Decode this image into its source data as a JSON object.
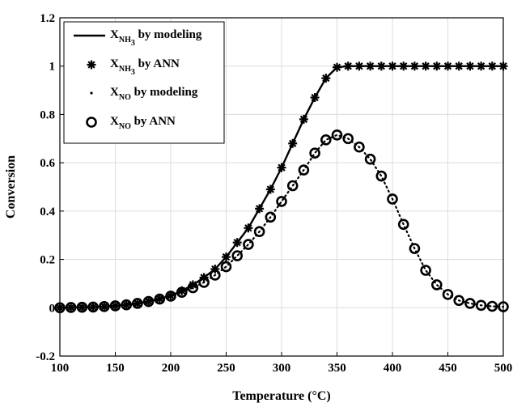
{
  "chart_data": {
    "type": "line",
    "xlabel": "Temperature (°C)",
    "ylabel": "Conversion",
    "xlim": [
      100,
      500
    ],
    "ylim": [
      -0.2,
      1.2
    ],
    "xticks": [
      100,
      150,
      200,
      250,
      300,
      350,
      400,
      450,
      500
    ],
    "yticks": [
      -0.2,
      0,
      0.2,
      0.4,
      0.6,
      0.8,
      1,
      1.2
    ],
    "ytick_labels": [
      "-0.2",
      "0",
      "0.2",
      "0.4",
      "0.6",
      "0.8",
      "1",
      "1.2"
    ],
    "grid": true,
    "legend_position": "top-left",
    "x": [
      100,
      110,
      120,
      130,
      140,
      150,
      160,
      170,
      180,
      190,
      200,
      210,
      220,
      230,
      240,
      250,
      260,
      270,
      280,
      290,
      300,
      310,
      320,
      330,
      340,
      350,
      360,
      370,
      380,
      390,
      400,
      410,
      420,
      430,
      440,
      450,
      460,
      470,
      480,
      490,
      500
    ],
    "series": [
      {
        "name": "by modeling",
        "legend_base": "X",
        "legend_sub": "NH",
        "legend_sub2": "3",
        "style": "solid-line",
        "values": [
          0.0,
          0.001,
          0.002,
          0.003,
          0.005,
          0.008,
          0.012,
          0.018,
          0.026,
          0.037,
          0.05,
          0.07,
          0.095,
          0.125,
          0.16,
          0.21,
          0.27,
          0.33,
          0.41,
          0.49,
          0.58,
          0.68,
          0.78,
          0.87,
          0.95,
          0.995,
          1.0,
          1.0,
          1.0,
          1.0,
          1.0,
          1.0,
          1.0,
          1.0,
          1.0,
          1.0,
          1.0,
          1.0,
          1.0,
          1.0,
          1.0
        ]
      },
      {
        "name": "by ANN",
        "legend_base": "X",
        "legend_sub": "NH",
        "legend_sub2": "3",
        "style": "asterisk-marker",
        "values": [
          0.0,
          0.001,
          0.002,
          0.003,
          0.005,
          0.008,
          0.012,
          0.018,
          0.026,
          0.037,
          0.05,
          0.07,
          0.095,
          0.125,
          0.16,
          0.21,
          0.27,
          0.33,
          0.41,
          0.49,
          0.58,
          0.68,
          0.78,
          0.87,
          0.95,
          0.995,
          1.0,
          1.0,
          1.0,
          1.0,
          1.0,
          1.0,
          1.0,
          1.0,
          1.0,
          1.0,
          1.0,
          1.0,
          1.0,
          1.0,
          1.0
        ]
      },
      {
        "name": "by modeling",
        "legend_base": "X",
        "legend_sub": "NO",
        "legend_sub2": "",
        "style": "dotted-line",
        "values": [
          0.0,
          0.001,
          0.002,
          0.003,
          0.005,
          0.008,
          0.012,
          0.018,
          0.026,
          0.036,
          0.048,
          0.064,
          0.083,
          0.105,
          0.135,
          0.17,
          0.215,
          0.262,
          0.315,
          0.375,
          0.44,
          0.505,
          0.57,
          0.64,
          0.695,
          0.715,
          0.7,
          0.665,
          0.615,
          0.545,
          0.45,
          0.345,
          0.245,
          0.155,
          0.095,
          0.055,
          0.03,
          0.018,
          0.01,
          0.006,
          0.004
        ]
      },
      {
        "name": "by ANN",
        "legend_base": "X",
        "legend_sub": "NO",
        "legend_sub2": "",
        "style": "circle-marker",
        "values": [
          0.0,
          0.001,
          0.002,
          0.003,
          0.005,
          0.008,
          0.012,
          0.018,
          0.026,
          0.036,
          0.048,
          0.064,
          0.083,
          0.105,
          0.135,
          0.17,
          0.215,
          0.262,
          0.315,
          0.375,
          0.44,
          0.505,
          0.57,
          0.64,
          0.695,
          0.715,
          0.7,
          0.665,
          0.615,
          0.545,
          0.45,
          0.345,
          0.245,
          0.155,
          0.095,
          0.055,
          0.03,
          0.018,
          0.01,
          0.006,
          0.004
        ]
      }
    ]
  }
}
